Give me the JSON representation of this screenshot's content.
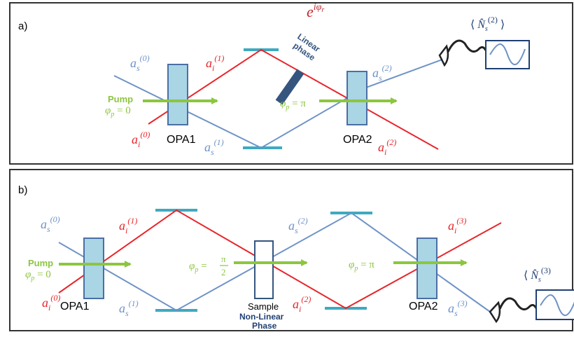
{
  "colors": {
    "signal": "#6f93c7",
    "idler": "#e8262b",
    "pump": "#8cc63f",
    "crystal_fill": "#a9d5e4",
    "crystal_stroke": "#4a6fa5",
    "mirror": "#3fa9c0",
    "phase_plate": "#35557f",
    "frame": "#333333"
  },
  "panel_a": {
    "label": "a)",
    "crystal1_label": "OPA1",
    "crystal2_label": "OPA2",
    "pump_label": "Pump",
    "pump_phase1": "φp = 0",
    "pump_phase2": "φp = π",
    "as0": "as(0)",
    "as1": "as(1)",
    "as2": "as(2)",
    "ai0": "ai(0)",
    "ai1": "ai(1)",
    "ai2": "ai(2)",
    "linear_phase_line1": "Linear",
    "linear_phase_line2": "phase",
    "phase_factor": "e^{iφr}",
    "detector_readout": "⟨ N̂s(2) ⟩"
  },
  "panel_b": {
    "label": "b)",
    "crystal1_label": "OPA1",
    "crystal2_label": "OPA2",
    "pump_label": "Pump",
    "pump_phase1": "φp = 0",
    "pump_phase2": "φp = π/2",
    "pump_phase3": "φp = π",
    "as0": "as(0)",
    "as1": "as(1)",
    "as2": "as(2)",
    "as3": "as(3)",
    "ai0": "ai(0)",
    "ai1": "ai(1)",
    "ai2": "ai(2)",
    "ai3": "ai(3)",
    "sample_label": "Sample",
    "nonlinear_line1": "Non-Linear",
    "nonlinear_line2": "Phase",
    "detector_readout": "⟨ N̂s(3)"
  }
}
